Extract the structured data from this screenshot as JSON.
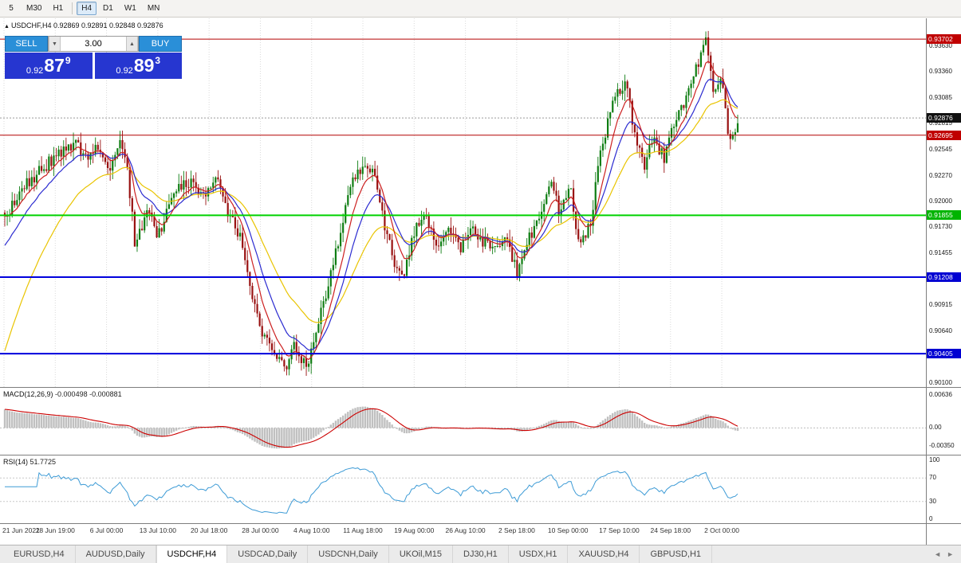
{
  "toolbar": {
    "timeframes": [
      "5",
      "M30",
      "H1",
      "H4",
      "D1",
      "W1",
      "MN"
    ],
    "active": "H4"
  },
  "chart": {
    "title_text": "USDCHF,H4 0.92869 0.92891 0.92848 0.92876",
    "trade_panel": {
      "sell_label": "SELL",
      "buy_label": "BUY",
      "volume": "3.00",
      "sell_price": {
        "big": "0.92",
        "pips": "87",
        "pt": "9"
      },
      "buy_price": {
        "big": "0.92",
        "pips": "89",
        "pt": "3"
      }
    }
  },
  "chart_data": {
    "type": "candlestick",
    "symbol": "USDCHF",
    "timeframe": "H4",
    "ohlc": {
      "open": 0.92869,
      "high": 0.92891,
      "low": 0.92848,
      "close": 0.92876
    },
    "ylim": [
      0.90056,
      0.9392
    ],
    "y_ticks": [
      "0.93630",
      "0.93360",
      "0.93085",
      "0.92815",
      "0.92545",
      "0.92270",
      "0.92000",
      "0.91730",
      "0.91455",
      "0.91185",
      "0.90915",
      "0.90640",
      "0.90370",
      "0.90100"
    ],
    "x_ticks": [
      "21 Jun 2021",
      "28 Jun 19:00",
      "6 Jul 00:00",
      "13 Jul 10:00",
      "20 Jul 18:00",
      "28 Jul 00:00",
      "4 Aug 10:00",
      "11 Aug 18:00",
      "19 Aug 00:00",
      "26 Aug 10:00",
      "2 Sep 18:00",
      "10 Sep 00:00",
      "17 Sep 10:00",
      "24 Sep 18:00",
      "2 Oct 00:00"
    ],
    "candle_count": 300,
    "bull_color": "#0e7d12",
    "bear_color": "#991111",
    "price_path": [
      [
        0.0,
        0.9185
      ],
      [
        0.026,
        0.9215
      ],
      [
        0.059,
        0.924
      ],
      [
        0.097,
        0.9262
      ],
      [
        0.113,
        0.924
      ],
      [
        0.124,
        0.9258
      ],
      [
        0.14,
        0.923
      ],
      [
        0.157,
        0.926
      ],
      [
        0.168,
        0.923
      ],
      [
        0.178,
        0.9152
      ],
      [
        0.195,
        0.9195
      ],
      [
        0.208,
        0.916
      ],
      [
        0.227,
        0.9205
      ],
      [
        0.249,
        0.9222
      ],
      [
        0.271,
        0.9205
      ],
      [
        0.287,
        0.9225
      ],
      [
        0.304,
        0.919
      ],
      [
        0.32,
        0.9165
      ],
      [
        0.336,
        0.9105
      ],
      [
        0.353,
        0.906
      ],
      [
        0.369,
        0.9042
      ],
      [
        0.385,
        0.9028
      ],
      [
        0.396,
        0.9052
      ],
      [
        0.412,
        0.9022
      ],
      [
        0.423,
        0.9058
      ],
      [
        0.44,
        0.911
      ],
      [
        0.456,
        0.916
      ],
      [
        0.472,
        0.9222
      ],
      [
        0.489,
        0.9235
      ],
      [
        0.505,
        0.9228
      ],
      [
        0.516,
        0.918
      ],
      [
        0.532,
        0.9135
      ],
      [
        0.543,
        0.9115
      ],
      [
        0.559,
        0.917
      ],
      [
        0.576,
        0.9185
      ],
      [
        0.59,
        0.915
      ],
      [
        0.605,
        0.9168
      ],
      [
        0.622,
        0.915
      ],
      [
        0.638,
        0.9172
      ],
      [
        0.652,
        0.9158
      ],
      [
        0.668,
        0.915
      ],
      [
        0.684,
        0.9165
      ],
      [
        0.699,
        0.9125
      ],
      [
        0.712,
        0.916
      ],
      [
        0.728,
        0.9178
      ],
      [
        0.746,
        0.9225
      ],
      [
        0.758,
        0.9185
      ],
      [
        0.771,
        0.9218
      ],
      [
        0.784,
        0.9152
      ],
      [
        0.799,
        0.9178
      ],
      [
        0.815,
        0.926
      ],
      [
        0.833,
        0.931
      ],
      [
        0.848,
        0.9328
      ],
      [
        0.861,
        0.9262
      ],
      [
        0.873,
        0.9238
      ],
      [
        0.886,
        0.9268
      ],
      [
        0.899,
        0.9245
      ],
      [
        0.913,
        0.9282
      ],
      [
        0.927,
        0.93
      ],
      [
        0.942,
        0.9335
      ],
      [
        0.956,
        0.9368
      ],
      [
        0.967,
        0.9318
      ],
      [
        0.978,
        0.933
      ],
      [
        0.989,
        0.9258
      ],
      [
        1.0,
        0.9288
      ]
    ],
    "moving_averages": [
      {
        "period": 34,
        "color": "#e9c400",
        "seed": 0.9035
      },
      {
        "period": 16,
        "color": "#2b2bd0",
        "seed": 0.915
      },
      {
        "period": 8,
        "color": "#cc2020",
        "seed": null
      }
    ],
    "levels": [
      {
        "price": 0.93702,
        "label": "0.93702",
        "color": "#b40000",
        "badge": "#c00000",
        "width": 1
      },
      {
        "price": 0.92695,
        "label": "0.92695",
        "color": "#b40000",
        "badge": "#c00000",
        "width": 1
      },
      {
        "price": 0.91855,
        "label": "0.91855",
        "color": "#00d200",
        "badge": "#00b400",
        "width": 2
      },
      {
        "price": 0.91208,
        "label": "0.91208",
        "color": "#0000dd",
        "badge": "#0000d2",
        "width": 2
      },
      {
        "price": 0.90405,
        "label": "0.90405",
        "color": "#0000dd",
        "badge": "#0000d2",
        "width": 2
      }
    ],
    "current_price": {
      "value": 0.92876,
      "label": "0.92876",
      "badge": "#111111"
    },
    "macd": {
      "label": "MACD(12,26,9)",
      "values_text": "-0.000498 -0.000881",
      "scale": [
        "0.00636",
        "0.00",
        "-0.00350"
      ],
      "ylim": [
        -0.0052,
        0.0078
      ],
      "hist_color": "#c0c0c0",
      "signal_color": "#cc0000"
    },
    "rsi": {
      "label": "RSI(14)",
      "value_text": "51.7725",
      "scale": [
        "100",
        "70",
        "30",
        "0"
      ],
      "levels": [
        70,
        30
      ],
      "color": "#3d9bd6"
    }
  },
  "tabs": {
    "items": [
      "EURUSD,H4",
      "AUDUSD,Daily",
      "USDCHF,H4",
      "USDCAD,Daily",
      "USDCNH,Daily",
      "UKOil,M15",
      "DJ30,H1",
      "USDX,H1",
      "XAUUSD,H4",
      "GBPUSD,H1"
    ],
    "active": "USDCHF,H4"
  }
}
